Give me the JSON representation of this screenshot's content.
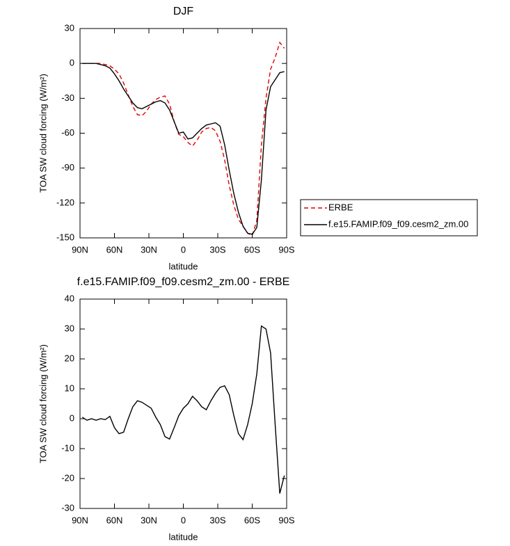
{
  "chart_data": [
    {
      "type": "line",
      "title": "DJF",
      "xlabel": "latitude",
      "ylabel": "TOA SW cloud forcing (W/m²)",
      "x": [
        88,
        84,
        80,
        76,
        72,
        68,
        64,
        60,
        56,
        52,
        48,
        44,
        40,
        36,
        32,
        28,
        24,
        20,
        16,
        12,
        8,
        4,
        0,
        -4,
        -8,
        -12,
        -16,
        -20,
        -24,
        -28,
        -32,
        -36,
        -40,
        -44,
        -48,
        -52,
        -56,
        -60,
        -64,
        -68,
        -72,
        -76,
        -80,
        -84,
        -88
      ],
      "series": [
        {
          "name": "ERBE",
          "color": "#e00000",
          "style": "dashed",
          "values": [
            0,
            0,
            0,
            0,
            0,
            -1,
            -2,
            -5,
            -9,
            -17,
            -27,
            -37,
            -44,
            -45,
            -41,
            -35,
            -31,
            -29,
            -28,
            -35,
            -50,
            -61,
            -63,
            -68,
            -71,
            -66,
            -59,
            -56,
            -55,
            -58,
            -67,
            -83,
            -105,
            -122,
            -134,
            -140,
            -146,
            -148,
            -135,
            -70,
            -30,
            -5,
            5,
            18,
            13
          ]
        },
        {
          "name": "f.e15.FAMIP.f09_f09.cesm2_zm.00",
          "color": "#000000",
          "style": "solid",
          "values": [
            0,
            0,
            0,
            0,
            -1,
            -2,
            -4,
            -9,
            -15,
            -22,
            -28,
            -34,
            -38,
            -39,
            -37,
            -35,
            -33,
            -32,
            -34,
            -40,
            -50,
            -60,
            -59,
            -65,
            -64,
            -60,
            -56,
            -53,
            -52,
            -51,
            -54,
            -70,
            -92,
            -112,
            -128,
            -140,
            -146,
            -147,
            -141,
            -100,
            -40,
            -20,
            -14,
            -8,
            -7
          ]
        }
      ],
      "xlim": [
        90,
        -90
      ],
      "xticks": [
        {
          "value": 90,
          "label": "90N"
        },
        {
          "value": 60,
          "label": "60N"
        },
        {
          "value": 30,
          "label": "30N"
        },
        0,
        {
          "value": -30,
          "label": "30S"
        },
        {
          "value": -60,
          "label": "60S"
        },
        {
          "value": -90,
          "label": "90S"
        }
      ],
      "ylim": [
        -150,
        30
      ],
      "yticks": [
        30,
        0,
        -30,
        -60,
        -90,
        -120,
        -150
      ],
      "legend": "right"
    },
    {
      "type": "line",
      "title": "f.e15.FAMIP.f09_f09.cesm2_zm.00 - ERBE",
      "xlabel": "latitude",
      "ylabel": "TOA SW cloud forcing (W/m²)",
      "x": [
        88,
        84,
        80,
        76,
        72,
        68,
        64,
        60,
        56,
        52,
        48,
        44,
        40,
        36,
        32,
        28,
        24,
        20,
        16,
        12,
        8,
        4,
        0,
        -4,
        -8,
        -12,
        -16,
        -20,
        -24,
        -28,
        -32,
        -36,
        -40,
        -44,
        -48,
        -52,
        -56,
        -60,
        -64,
        -68,
        -72,
        -76,
        -80,
        -84,
        -88
      ],
      "series": [
        {
          "color": "#000000",
          "style": "solid",
          "values": [
            0.5,
            -0.5,
            0,
            -0.5,
            0,
            -0.3,
            0.8,
            -3,
            -5,
            -4.5,
            0,
            4,
            6,
            5.5,
            4.5,
            3.5,
            0.5,
            -2,
            -6,
            -6.8,
            -3,
            1,
            3.5,
            5,
            7.5,
            6,
            4,
            3,
            6,
            8.5,
            10.5,
            11,
            8,
            1,
            -5,
            -7,
            -2,
            5,
            15,
            31,
            30,
            22,
            -2,
            -25,
            -19
          ]
        }
      ],
      "xlim": [
        90,
        -90
      ],
      "xticks": [
        {
          "value": 90,
          "label": "90N"
        },
        {
          "value": 60,
          "label": "60N"
        },
        {
          "value": 30,
          "label": "30N"
        },
        0,
        {
          "value": -30,
          "label": "30S"
        },
        {
          "value": -60,
          "label": "60S"
        },
        {
          "value": -90,
          "label": "90S"
        }
      ],
      "ylim": [
        -30,
        40
      ],
      "yticks": [
        40,
        30,
        20,
        10,
        0,
        -10,
        -20,
        -30
      ]
    }
  ]
}
